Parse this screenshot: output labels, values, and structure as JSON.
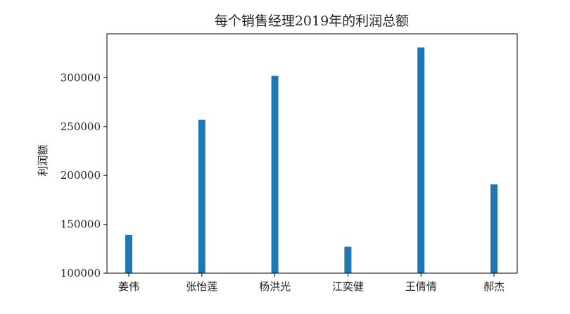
{
  "chart_data": {
    "type": "bar",
    "title": "每个销售经理2019年的利润总额",
    "xlabel": "",
    "ylabel": "利润额",
    "categories": [
      "姜伟",
      "张怡莲",
      "杨洪光",
      "江奕健",
      "王倩倩",
      "郝杰"
    ],
    "values": [
      139000,
      257000,
      302000,
      127000,
      331000,
      191000
    ],
    "ylim": [
      100000,
      345000
    ],
    "yticks": [
      100000,
      150000,
      200000,
      250000,
      300000
    ],
    "ytick_labels": [
      "100000",
      "150000",
      "200000",
      "250000",
      "300000"
    ],
    "bar_color": "#1f77b4",
    "grid": false,
    "legend": "none"
  }
}
